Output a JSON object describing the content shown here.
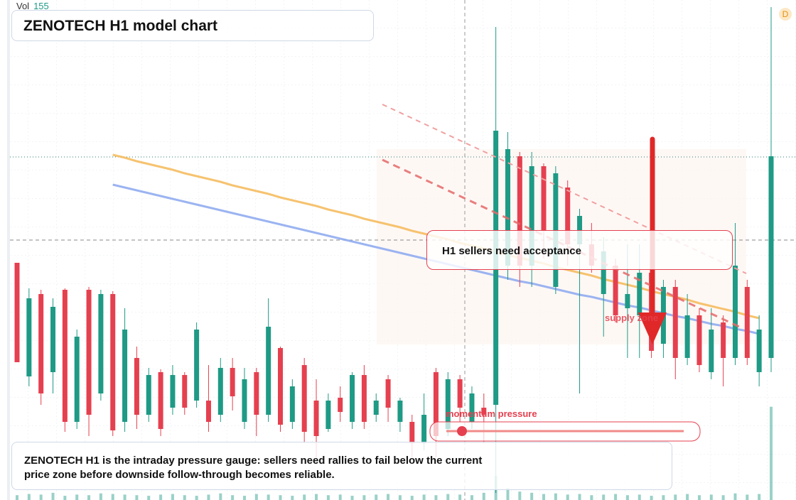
{
  "chart_data": {
    "type": "candlestick",
    "title": "ZENOTECH H1 model chart",
    "volume_label": "Vol",
    "badge": "D",
    "callout": "H1 sellers need acceptance",
    "zone_label": "supply zone",
    "gauge_label": "momentum pressure",
    "note": "ZENOTECH H1 is the intraday pressure gauge: sellers need rallies to fail below the current price zone before downside follow-through becomes reliable.",
    "up_color": "#1e9a85",
    "down_color": "#e5404f",
    "ylim": [
      0,
      704
    ],
    "volume_lim": [
      0,
      170
    ],
    "open": [
      334,
      174,
      290,
      180,
      296,
      110,
      296,
      150,
      290,
      110,
      200,
      120,
      180,
      130,
      176,
      140,
      140,
      120,
      186,
      110,
      180,
      120,
      214,
      110,
      190,
      140,
      100,
      144,
      110,
      176,
      120,
      170,
      110,
      110,
      80,
      180,
      100,
      170,
      110,
      130,
      134,
      330,
      484,
      330,
      470,
      300,
      440,
      360,
      360,
      290,
      330,
      270,
      260,
      320,
      220,
      300,
      200,
      260,
      180,
      250,
      200,
      300,
      180,
      200
    ],
    "high": [
      334,
      298,
      296,
      284,
      298,
      240,
      300,
      296,
      294,
      270,
      216,
      186,
      184,
      190,
      180,
      250,
      190,
      200,
      200,
      186,
      186,
      284,
      216,
      170,
      200,
      170,
      150,
      160,
      180,
      190,
      150,
      176,
      144,
      120,
      150,
      186,
      180,
      176,
      160,
      150,
      666,
      518,
      490,
      490,
      474,
      470,
      450,
      410,
      390,
      370,
      340,
      360,
      360,
      330,
      310,
      310,
      290,
      270,
      270,
      260,
      390,
      310,
      260,
      694
    ],
    "low": [
      194,
      160,
      134,
      150,
      96,
      100,
      90,
      140,
      90,
      96,
      100,
      110,
      90,
      120,
      120,
      130,
      96,
      110,
      126,
      100,
      90,
      110,
      96,
      100,
      80,
      60,
      96,
      110,
      100,
      100,
      110,
      110,
      96,
      60,
      70,
      60,
      90,
      110,
      100,
      80,
      10,
      310,
      300,
      300,
      340,
      290,
      330,
      150,
      320,
      230,
      250,
      200,
      200,
      200,
      200,
      170,
      190,
      180,
      170,
      160,
      190,
      190,
      160,
      180
    ],
    "close": [
      194,
      284,
      150,
      272,
      110,
      230,
      120,
      290,
      98,
      240,
      120,
      176,
      100,
      176,
      130,
      240,
      110,
      186,
      146,
      170,
      120,
      244,
      106,
      160,
      96,
      90,
      140,
      124,
      176,
      110,
      140,
      130,
      140,
      80,
      120,
      90,
      170,
      130,
      150,
      120,
      520,
      494,
      330,
      470,
      380,
      460,
      360,
      400,
      330,
      350,
      260,
      290,
      320,
      210,
      300,
      200,
      260,
      190,
      240,
      200,
      330,
      200,
      240,
      484
    ],
    "volume": [
      8,
      10,
      9,
      12,
      7,
      9,
      8,
      11,
      10,
      9,
      8,
      7,
      9,
      10,
      8,
      7,
      9,
      11,
      8,
      7,
      10,
      9,
      8,
      7,
      9,
      10,
      8,
      9,
      7,
      8,
      9,
      10,
      8,
      7,
      9,
      8,
      10,
      9,
      8,
      12,
      40,
      20,
      14,
      12,
      10,
      11,
      9,
      10,
      8,
      9,
      10,
      8,
      9,
      7,
      8,
      9,
      10,
      8,
      9,
      8,
      11,
      9,
      10,
      155
    ],
    "overlays": [
      {
        "color": "#f5b957",
        "values": [
          null,
          null,
          null,
          null,
          null,
          null,
          null,
          null,
          486,
          482,
          477,
          473,
          469,
          465,
          460,
          456,
          452,
          448,
          443,
          439,
          435,
          431,
          426,
          422,
          418,
          414,
          409,
          405,
          401,
          396,
          392,
          388,
          384,
          379,
          375,
          371,
          367,
          362,
          358,
          354,
          350,
          345,
          341,
          337,
          333,
          328,
          324,
          320,
          316,
          311,
          307,
          303,
          299,
          294,
          290,
          286,
          282,
          277,
          273,
          269,
          265,
          260,
          256,
          null
        ]
      },
      {
        "color": "#8aa7ee",
        "values": [
          null,
          null,
          null,
          null,
          null,
          null,
          null,
          null,
          444,
          440,
          436,
          432,
          428,
          424,
          420,
          416,
          412,
          408,
          404,
          400,
          396,
          392,
          388,
          384,
          380,
          376,
          372,
          368,
          364,
          360,
          356,
          352,
          348,
          344,
          340,
          336,
          332,
          328,
          324,
          320,
          316,
          312,
          308,
          305,
          301,
          297,
          293,
          289,
          286,
          282,
          278,
          274,
          271,
          267,
          263,
          259,
          256,
          252,
          248,
          245,
          241,
          238,
          234,
          null
        ]
      }
    ]
  }
}
